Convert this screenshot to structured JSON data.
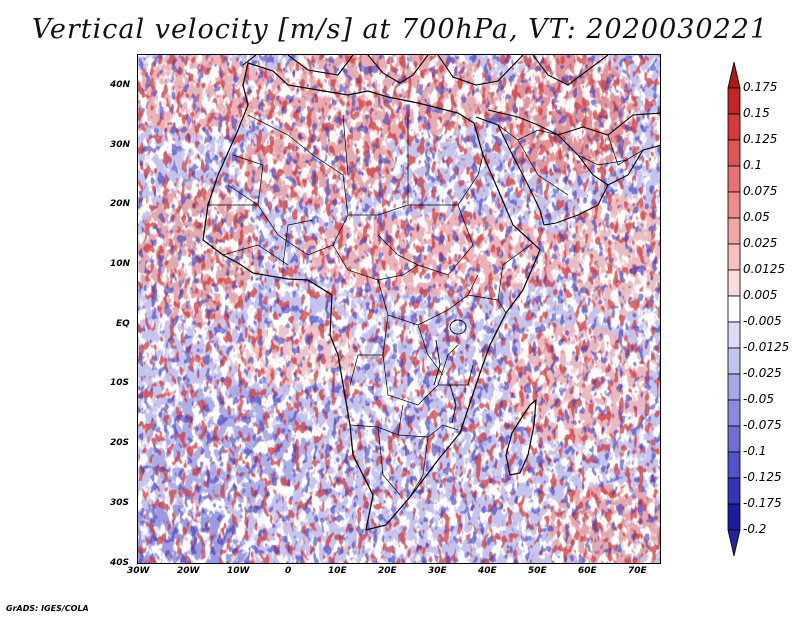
{
  "title": "Vertical velocity [m/s] at 700hPa, VT: 2020030221",
  "credit": "GrADS: IGES/COLA",
  "map": {
    "region": "Africa",
    "lon_range": [
      -30,
      75
    ],
    "lat_range": [
      -40,
      45
    ],
    "lon_ticks": [
      "30W",
      "20W",
      "10W",
      "0",
      "10E",
      "20E",
      "30E",
      "40E",
      "50E",
      "60E",
      "70E"
    ],
    "lat_ticks": [
      "40N",
      "30N",
      "20N",
      "10N",
      "EQ",
      "10S",
      "20S",
      "30S",
      "40S"
    ]
  },
  "colorbar": {
    "labels": [
      "0.175",
      "0.15",
      "0.125",
      "0.1",
      "0.075",
      "0.05",
      "0.025",
      "0.0125",
      "0.005",
      "-0.005",
      "-0.0125",
      "-0.025",
      "-0.05",
      "-0.075",
      "-0.1",
      "-0.125",
      "-0.175",
      "-0.2"
    ],
    "colors": [
      "#b11515",
      "#c52424",
      "#d43a3a",
      "#e05555",
      "#e87070",
      "#ee8a8a",
      "#f3a4a4",
      "#f8c0c0",
      "#fcdcdc",
      "#ffffff",
      "#dcdcf8",
      "#c2c2f0",
      "#a6a6e8",
      "#8a8ae0",
      "#6e6ed6",
      "#5252cc",
      "#3434b8",
      "#1c1ca0",
      "#22229a"
    ]
  }
}
